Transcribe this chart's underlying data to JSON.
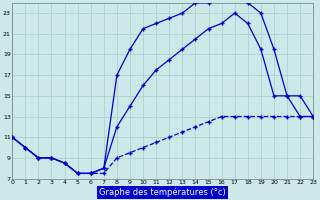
{
  "bg": "#cce8e8",
  "grid_color": "#aacccc",
  "line_color": "#0000cc",
  "xlim": [
    0,
    23
  ],
  "ylim": [
    7,
    24
  ],
  "ytick_vals": [
    7,
    9,
    11,
    13,
    15,
    17,
    19,
    21,
    23
  ],
  "xlabel": "Graphe des températures (°c)",
  "curve1_x": [
    0,
    1,
    2,
    3,
    4,
    5,
    6,
    7,
    8,
    9,
    10,
    11,
    12,
    13,
    14,
    15,
    16,
    17,
    18,
    19,
    20,
    21,
    22,
    23
  ],
  "curve1_y": [
    11,
    10,
    9,
    9,
    8.5,
    7.5,
    7.5,
    7.5,
    9,
    9.5,
    10,
    10.5,
    11,
    11.5,
    12,
    12.5,
    13,
    13,
    13,
    13,
    13,
    13,
    13,
    13
  ],
  "curve2_x": [
    0,
    1,
    2,
    3,
    4,
    5,
    6,
    7,
    8,
    9,
    10,
    11,
    12,
    13,
    14,
    15,
    16,
    17,
    18,
    19,
    20,
    21,
    22,
    23
  ],
  "curve2_y": [
    11,
    10,
    9,
    9,
    8.5,
    7.5,
    7.5,
    8,
    17,
    19.5,
    21.5,
    22,
    22.5,
    23,
    24,
    24,
    24.5,
    24.5,
    24,
    23,
    19.5,
    15,
    15,
    13
  ],
  "curve3_x": [
    0,
    1,
    2,
    3,
    4,
    5,
    6,
    7,
    8,
    9,
    10,
    11,
    12,
    13,
    14,
    15,
    16,
    17,
    18,
    19,
    20,
    21,
    22,
    23
  ],
  "curve3_y": [
    11,
    10,
    9,
    9,
    8.5,
    7.5,
    7.5,
    8,
    12,
    14,
    16,
    17.5,
    18.5,
    19.5,
    20.5,
    21.5,
    22,
    23,
    22,
    19.5,
    15,
    15,
    13,
    13
  ]
}
